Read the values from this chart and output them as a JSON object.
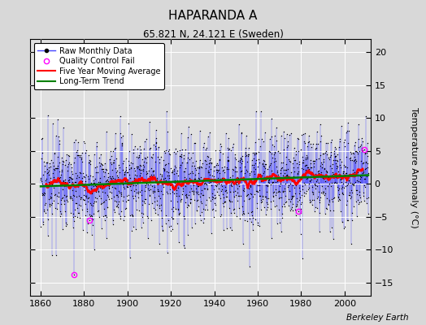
{
  "title": "HAPARANDA A",
  "subtitle": "65.821 N, 24.121 E (Sweden)",
  "ylabel": "Temperature Anomaly (°C)",
  "ylim": [
    -17,
    22
  ],
  "xlim": [
    1855,
    2012
  ],
  "yticks": [
    -15,
    -10,
    -5,
    0,
    5,
    10,
    15,
    20
  ],
  "xticks": [
    1860,
    1880,
    1900,
    1920,
    1940,
    1960,
    1980,
    2000
  ],
  "bg_color": "#e0e0e0",
  "grid_color": "#ffffff",
  "raw_line_color": "#4444ff",
  "raw_marker_color": "black",
  "qc_fail_color": "magenta",
  "moving_avg_color": "red",
  "trend_color": "green",
  "watermark": "Berkeley Earth",
  "start_year": 1860,
  "end_year": 2011,
  "seed": 17
}
